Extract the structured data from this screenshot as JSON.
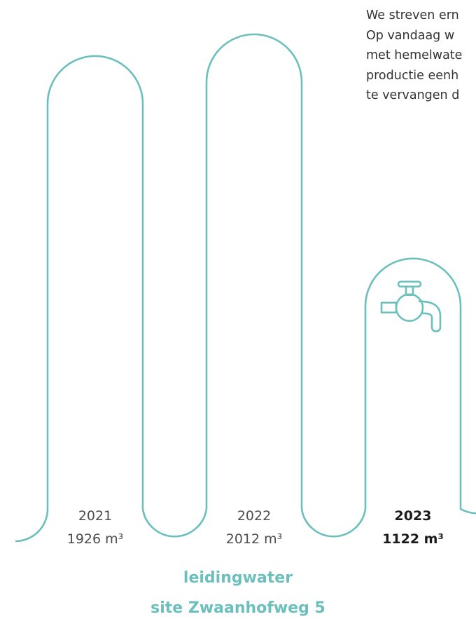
{
  "intro_text": [
    "We streven ern",
    "Op vandaag w",
    "met hemelwate",
    "productie eenh",
    "te vervangen d"
  ],
  "chart_data": {
    "type": "bar",
    "title": "leidingwater",
    "subtitle": "site Zwaanhofweg 5",
    "unit": "m³",
    "categories": [
      "2021",
      "2022",
      "2023"
    ],
    "values": [
      1926,
      2012,
      1122
    ],
    "highlight": "2023",
    "ylim": [
      0,
      2115
    ],
    "ylabel": "",
    "xlabel": "",
    "grid": false,
    "highlight_icon": "water-tap-icon"
  },
  "colors": {
    "accent": "#6bbfbd",
    "text": "#4d4d4d",
    "text_strong": "#1a1a1a"
  }
}
